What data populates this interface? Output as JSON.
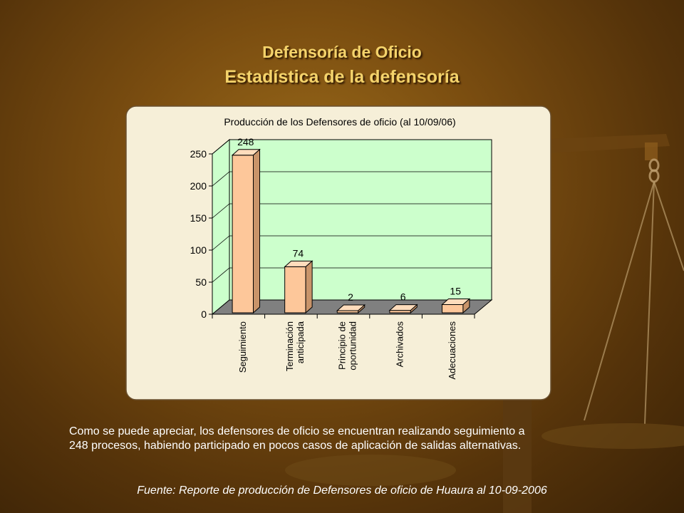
{
  "slide": {
    "title_line1": "Defensoría de Oficio",
    "title_line2": "Estadística de la defensoría",
    "caption_line1": "Como se puede apreciar, los defensores de oficio se encuentran realizando seguimiento a",
    "caption_line2": "248 procesos, habiendo participado en pocos casos de aplicación de salidas alternativas.",
    "source": "Fuente:  Reporte de producción de Defensores de oficio de Huaura al 10-09-2006"
  },
  "colors": {
    "bar_front": "#fdc79a",
    "wall": "#ccffcc",
    "floor": "#808080",
    "panel": "#f6efd8",
    "title": "#f4d36b"
  },
  "chart_data": {
    "type": "bar",
    "title": "Producción de los Defensores de oficio (al 10/09/06)",
    "categories": [
      "Seguimiento",
      "Terminación anticipada",
      "Principio de oportunidad",
      "Archivados",
      "Adecuaciones"
    ],
    "category_lines": [
      [
        "Seguimiento"
      ],
      [
        "Terminación",
        "anticipada"
      ],
      [
        "Principio de",
        "oportunidad"
      ],
      [
        "Archivados"
      ],
      [
        "Adecuaciones"
      ]
    ],
    "values": [
      248,
      74,
      2,
      6,
      15
    ],
    "ylim": [
      0,
      250
    ],
    "yticks": [
      0,
      50,
      100,
      150,
      200,
      250
    ],
    "grid": true,
    "legend": "none",
    "style": "3d"
  }
}
